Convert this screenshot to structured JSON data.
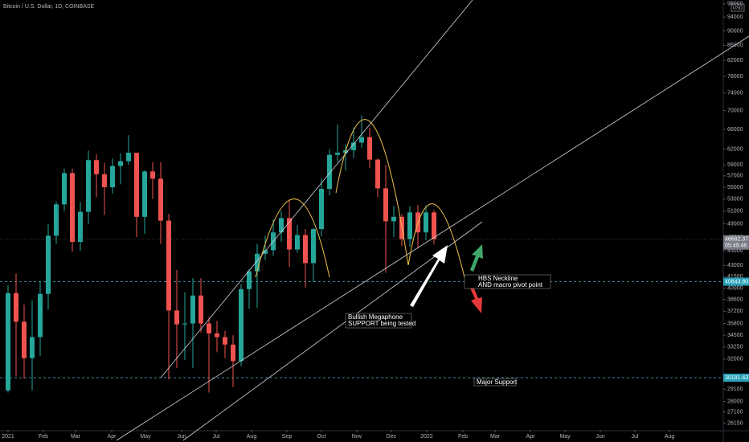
{
  "chart_data": {
    "type": "candlestick",
    "title": "Bitcoin / U.S. Dollar, 1D, COINBASE",
    "currency": "USD",
    "countdown": "05:49:46",
    "up_color": "#26a69a",
    "down_color": "#ef5350",
    "log_scale": true,
    "grid": false,
    "xlim": [
      -1,
      89
    ],
    "xticks": [
      {
        "value": 0,
        "label": "2021"
      },
      {
        "value": 4.4,
        "label": "Feb"
      },
      {
        "value": 8.4,
        "label": "Mar"
      },
      {
        "value": 12.9,
        "label": "Apr"
      },
      {
        "value": 17.1,
        "label": "May"
      },
      {
        "value": 21.6,
        "label": "Jun"
      },
      {
        "value": 25.9,
        "label": "Jul"
      },
      {
        "value": 30.3,
        "label": "Aug"
      },
      {
        "value": 34.7,
        "label": "Sep"
      },
      {
        "value": 39,
        "label": "Oct"
      },
      {
        "value": 43.4,
        "label": "Nov"
      },
      {
        "value": 47.7,
        "label": "Dec"
      },
      {
        "value": 52.1,
        "label": "2022"
      },
      {
        "value": 56.6,
        "label": "Feb"
      },
      {
        "value": 60.6,
        "label": "Mar"
      },
      {
        "value": 65,
        "label": "Apr"
      },
      {
        "value": 69.3,
        "label": "May"
      },
      {
        "value": 73.7,
        "label": "Jun"
      },
      {
        "value": 78,
        "label": "Jul"
      },
      {
        "value": 82.3,
        "label": "Aug"
      }
    ],
    "ylim": [
      25600,
      99200
    ],
    "yticks": [
      98000,
      94000,
      90000,
      86000,
      82000,
      78000,
      74000,
      70000,
      66000,
      62000,
      59000,
      57000,
      55000,
      53000,
      51000,
      49000,
      47000,
      45000,
      43000,
      41500,
      40000,
      38600,
      37200,
      35800,
      34500,
      33250,
      32000,
      29100,
      28000,
      27100,
      26150
    ],
    "open": [
      29000,
      39400,
      36000,
      32100,
      34300,
      39300,
      47200,
      52100,
      57500,
      46300,
      50900,
      59900,
      57300,
      55000,
      58800,
      59700,
      61300,
      50100,
      57800,
      56500,
      49500,
      37300,
      35700,
      35800,
      39100,
      35800,
      34700,
      34300,
      33500,
      31800,
      39900,
      42200,
      44600,
      45100,
      47700,
      49900,
      45200,
      47300,
      43300,
      48200,
      54700,
      60900,
      61300,
      61800,
      63300,
      64400,
      60000,
      54800,
      49400,
      50100,
      46700,
      50800,
      47700,
      50800
    ],
    "high": [
      40400,
      41900,
      38000,
      38500,
      40900,
      49000,
      52600,
      58300,
      58300,
      52500,
      61700,
      61000,
      59400,
      60200,
      61200,
      64800,
      61300,
      58000,
      59500,
      59500,
      50600,
      42400,
      39500,
      41300,
      41300,
      36500,
      36100,
      35000,
      34500,
      40500,
      42500,
      46000,
      47200,
      49700,
      51000,
      52900,
      48800,
      48200,
      48400,
      56500,
      62000,
      67000,
      63000,
      66400,
      69000,
      66300,
      60200,
      59000,
      51900,
      50500,
      51800,
      52000,
      51900,
      51200
    ],
    "low": [
      28800,
      30300,
      30100,
      29000,
      32300,
      37400,
      46000,
      51000,
      44900,
      45000,
      49000,
      53300,
      50400,
      53900,
      55500,
      59000,
      47000,
      47500,
      53000,
      46000,
      30000,
      31100,
      31900,
      31100,
      34800,
      28800,
      32700,
      32100,
      29300,
      31300,
      37500,
      37600,
      43700,
      44300,
      46300,
      42800,
      44700,
      40100,
      40800,
      47100,
      53600,
      59600,
      58000,
      60300,
      62300,
      58400,
      53300,
      42000,
      47000,
      45700,
      45600,
      45500,
      46500,
      45900
    ],
    "close": [
      39400,
      36000,
      32100,
      34300,
      39300,
      47200,
      52100,
      57500,
      46300,
      50900,
      59900,
      57300,
      55000,
      58800,
      59700,
      61300,
      50100,
      57800,
      56500,
      49500,
      37300,
      35700,
      35800,
      39100,
      35800,
      34700,
      34300,
      33500,
      31800,
      39900,
      42200,
      44600,
      45100,
      47700,
      49900,
      45200,
      47300,
      43300,
      48200,
      54700,
      60900,
      61300,
      61800,
      63300,
      64400,
      60000,
      54800,
      49400,
      50100,
      46700,
      50800,
      47700,
      50800,
      46682.37
    ],
    "levels": [
      {
        "value": 40843.8,
        "label": "40843.80"
      },
      {
        "value": 30181.43,
        "label": "30181.43"
      }
    ],
    "annotations": [
      [
        "Bullish Megaphone",
        "SUPPORT being tested"
      ],
      [
        "HBS Neckline",
        "AND macro pivot point"
      ],
      [
        "Major Support"
      ]
    ]
  }
}
